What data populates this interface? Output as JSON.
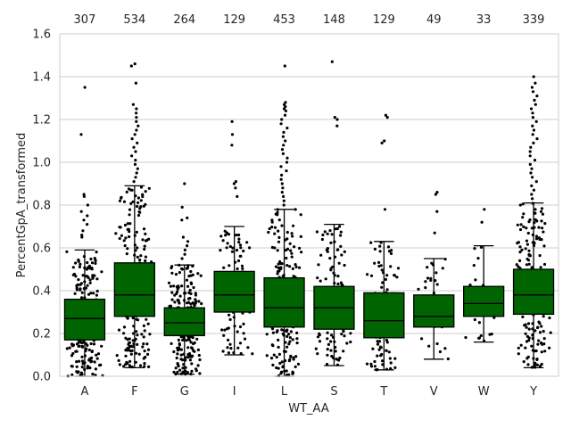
{
  "chart_data": {
    "type": "box",
    "xlabel": "WT_AA",
    "ylabel": "PercentGpA_transformed",
    "ylim": [
      0.0,
      1.6
    ],
    "yticks": [
      "0.0",
      "0.2",
      "0.4",
      "0.6",
      "0.8",
      "1.0",
      "1.2",
      "1.4",
      "1.6"
    ],
    "grid": "horizontal",
    "box_color": "#006400",
    "point_color": "#000000",
    "categories": [
      "A",
      "F",
      "G",
      "I",
      "L",
      "S",
      "T",
      "V",
      "W",
      "Y"
    ],
    "counts": [
      "307",
      "534",
      "264",
      "129",
      "453",
      "148",
      "129",
      "49",
      "33",
      "339"
    ],
    "boxes": [
      {
        "category": "A",
        "whisker_low": 0.0,
        "q1": 0.17,
        "median": 0.27,
        "q3": 0.36,
        "whisker_high": 0.59,
        "outliers": [
          0.65,
          0.66,
          0.68,
          0.71,
          0.73,
          0.75,
          0.77,
          0.8,
          0.84,
          0.85,
          1.13,
          1.35
        ]
      },
      {
        "category": "F",
        "whisker_low": 0.04,
        "q1": 0.28,
        "median": 0.38,
        "q3": 0.53,
        "whisker_high": 0.89,
        "outliers": [
          0.91,
          0.93,
          0.95,
          0.97,
          0.99,
          1.01,
          1.03,
          1.05,
          1.07,
          1.09,
          1.11,
          1.13,
          1.15,
          1.17,
          1.19,
          1.21,
          1.23,
          1.25,
          1.27,
          1.37,
          1.45,
          1.46
        ]
      },
      {
        "category": "G",
        "whisker_low": 0.01,
        "q1": 0.19,
        "median": 0.25,
        "q3": 0.32,
        "whisker_high": 0.52,
        "outliers": [
          0.55,
          0.57,
          0.59,
          0.61,
          0.63,
          0.65,
          0.73,
          0.74,
          0.79,
          0.9
        ]
      },
      {
        "category": "I",
        "whisker_low": 0.1,
        "q1": 0.3,
        "median": 0.38,
        "q3": 0.49,
        "whisker_high": 0.7,
        "outliers": [
          0.84,
          0.88,
          0.9,
          0.91,
          1.08,
          1.13,
          1.19
        ]
      },
      {
        "category": "L",
        "whisker_low": 0.0,
        "q1": 0.23,
        "median": 0.32,
        "q3": 0.46,
        "whisker_high": 0.78,
        "outliers": [
          0.8,
          0.82,
          0.84,
          0.86,
          0.88,
          0.9,
          0.92,
          0.94,
          0.96,
          0.98,
          1.0,
          1.02,
          1.04,
          1.06,
          1.08,
          1.1,
          1.12,
          1.14,
          1.16,
          1.18,
          1.2,
          1.22,
          1.24,
          1.25,
          1.26,
          1.27,
          1.28,
          1.45
        ]
      },
      {
        "category": "S",
        "whisker_low": 0.05,
        "q1": 0.22,
        "median": 0.32,
        "q3": 0.42,
        "whisker_high": 0.71,
        "outliers": [
          1.17,
          1.2,
          1.21,
          1.47
        ]
      },
      {
        "category": "T",
        "whisker_low": 0.03,
        "q1": 0.18,
        "median": 0.26,
        "q3": 0.39,
        "whisker_high": 0.63,
        "outliers": [
          0.78,
          1.09,
          1.1,
          1.21,
          1.22
        ]
      },
      {
        "category": "V",
        "whisker_low": 0.08,
        "q1": 0.23,
        "median": 0.28,
        "q3": 0.38,
        "whisker_high": 0.55,
        "outliers": [
          0.67,
          0.77,
          0.85,
          0.86
        ]
      },
      {
        "category": "W",
        "whisker_low": 0.16,
        "q1": 0.28,
        "median": 0.34,
        "q3": 0.42,
        "whisker_high": 0.61,
        "outliers": [
          0.72,
          0.78
        ]
      },
      {
        "category": "Y",
        "whisker_low": 0.04,
        "q1": 0.29,
        "median": 0.38,
        "q3": 0.5,
        "whisker_high": 0.81,
        "outliers": [
          0.83,
          0.85,
          0.87,
          0.89,
          0.91,
          0.93,
          0.95,
          0.97,
          0.99,
          1.01,
          1.03,
          1.05,
          1.07,
          1.09,
          1.11,
          1.13,
          1.15,
          1.17,
          1.19,
          1.21,
          1.23,
          1.25,
          1.27,
          1.29,
          1.31,
          1.33,
          1.35,
          1.37,
          1.4
        ]
      }
    ]
  }
}
